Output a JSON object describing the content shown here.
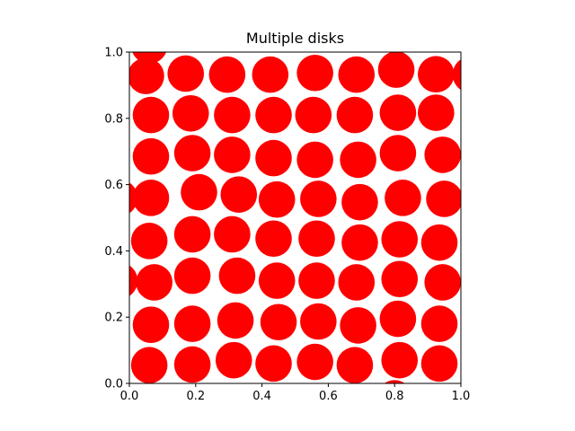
{
  "chart_data": {
    "type": "scatter",
    "title": "Multiple disks",
    "xlabel": "",
    "ylabel": "",
    "xlim": [
      0.0,
      1.0
    ],
    "ylim": [
      0.0,
      1.0
    ],
    "xticks": [
      "0.0",
      "0.2",
      "0.4",
      "0.6",
      "0.8",
      "1.0"
    ],
    "yticks": [
      "0.0",
      "0.2",
      "0.4",
      "0.6",
      "0.8",
      "1.0"
    ],
    "grid": false,
    "aspect": "equal",
    "disk_color": "#ff0000",
    "disk_radius": 0.055,
    "points": [
      {
        "x": 0.05,
        "y": 0.928
      },
      {
        "x": 0.17,
        "y": 0.935
      },
      {
        "x": 0.295,
        "y": 0.932
      },
      {
        "x": 0.425,
        "y": 0.932
      },
      {
        "x": 0.56,
        "y": 0.937
      },
      {
        "x": 0.685,
        "y": 0.932
      },
      {
        "x": 0.805,
        "y": 0.947
      },
      {
        "x": 0.925,
        "y": 0.933
      },
      {
        "x": 1.03,
        "y": 0.932
      },
      {
        "x": 0.065,
        "y": 0.81
      },
      {
        "x": 0.185,
        "y": 0.815
      },
      {
        "x": 0.31,
        "y": 0.81
      },
      {
        "x": 0.435,
        "y": 0.81
      },
      {
        "x": 0.555,
        "y": 0.81
      },
      {
        "x": 0.68,
        "y": 0.81
      },
      {
        "x": 0.81,
        "y": 0.817
      },
      {
        "x": 0.925,
        "y": 0.817
      },
      {
        "x": 0.065,
        "y": 0.685
      },
      {
        "x": 0.19,
        "y": 0.695
      },
      {
        "x": 0.31,
        "y": 0.69
      },
      {
        "x": 0.435,
        "y": 0.68
      },
      {
        "x": 0.56,
        "y": 0.675
      },
      {
        "x": 0.69,
        "y": 0.675
      },
      {
        "x": 0.81,
        "y": 0.695
      },
      {
        "x": 0.945,
        "y": 0.69
      },
      {
        "x": -0.03,
        "y": 0.56
      },
      {
        "x": 0.065,
        "y": 0.56
      },
      {
        "x": 0.21,
        "y": 0.577
      },
      {
        "x": 0.33,
        "y": 0.57
      },
      {
        "x": 0.445,
        "y": 0.555
      },
      {
        "x": 0.57,
        "y": 0.557
      },
      {
        "x": 0.695,
        "y": 0.547
      },
      {
        "x": 0.825,
        "y": 0.56
      },
      {
        "x": 0.95,
        "y": 0.557
      },
      {
        "x": 0.06,
        "y": 0.43
      },
      {
        "x": 0.19,
        "y": 0.45
      },
      {
        "x": 0.31,
        "y": 0.45
      },
      {
        "x": 0.435,
        "y": 0.437
      },
      {
        "x": 0.565,
        "y": 0.437
      },
      {
        "x": 0.695,
        "y": 0.425
      },
      {
        "x": 0.815,
        "y": 0.435
      },
      {
        "x": 0.935,
        "y": 0.425
      },
      {
        "x": -0.03,
        "y": 0.31
      },
      {
        "x": 0.075,
        "y": 0.305
      },
      {
        "x": 0.19,
        "y": 0.325
      },
      {
        "x": 0.325,
        "y": 0.325
      },
      {
        "x": 0.445,
        "y": 0.31
      },
      {
        "x": 0.565,
        "y": 0.31
      },
      {
        "x": 0.685,
        "y": 0.305
      },
      {
        "x": 0.815,
        "y": 0.315
      },
      {
        "x": 0.945,
        "y": 0.305
      },
      {
        "x": 0.065,
        "y": 0.177
      },
      {
        "x": 0.19,
        "y": 0.18
      },
      {
        "x": 0.32,
        "y": 0.19
      },
      {
        "x": 0.45,
        "y": 0.185
      },
      {
        "x": 0.57,
        "y": 0.187
      },
      {
        "x": 0.69,
        "y": 0.175
      },
      {
        "x": 0.81,
        "y": 0.195
      },
      {
        "x": 0.935,
        "y": 0.18
      },
      {
        "x": 0.06,
        "y": 0.055
      },
      {
        "x": 0.19,
        "y": 0.057
      },
      {
        "x": 0.315,
        "y": 0.07
      },
      {
        "x": 0.435,
        "y": 0.06
      },
      {
        "x": 0.56,
        "y": 0.065
      },
      {
        "x": 0.68,
        "y": 0.055
      },
      {
        "x": 0.815,
        "y": 0.07
      },
      {
        "x": 0.935,
        "y": 0.06
      },
      {
        "x": 0.8,
        "y": -0.045
      },
      {
        "x": 0.06,
        "y": 1.02
      }
    ]
  }
}
